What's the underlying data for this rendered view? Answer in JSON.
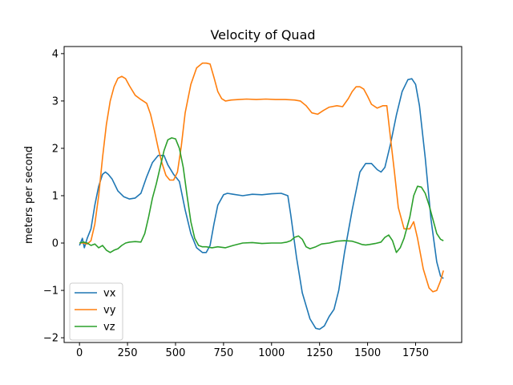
{
  "chart_data": {
    "type": "line",
    "title": "Velocity of Quad",
    "xlabel": "",
    "ylabel": "meters per second",
    "xlim": [
      -80,
      1990
    ],
    "ylim": [
      -2.1,
      4.15
    ],
    "xticks": [
      0,
      250,
      500,
      750,
      1000,
      1250,
      1500,
      1750
    ],
    "yticks": [
      -2,
      -1,
      0,
      1,
      2,
      3,
      4
    ],
    "grid": false,
    "legend": "lower-left",
    "series": [
      {
        "name": "vx",
        "color": "#1f77b4",
        "x": [
          0,
          15,
          25,
          40,
          60,
          80,
          100,
          120,
          135,
          150,
          170,
          200,
          230,
          260,
          290,
          320,
          350,
          380,
          410,
          440,
          460,
          490,
          520,
          550,
          580,
          610,
          640,
          660,
          680,
          700,
          720,
          750,
          770,
          800,
          850,
          900,
          950,
          1000,
          1050,
          1085,
          1100,
          1130,
          1160,
          1200,
          1230,
          1250,
          1275,
          1300,
          1325,
          1350,
          1380,
          1420,
          1460,
          1490,
          1520,
          1550,
          1570,
          1590,
          1620,
          1650,
          1680,
          1710,
          1730,
          1750,
          1770,
          1800,
          1830,
          1860,
          1880,
          1895
        ],
        "values": [
          -0.05,
          0.1,
          -0.1,
          0.1,
          0.3,
          0.8,
          1.2,
          1.45,
          1.5,
          1.45,
          1.35,
          1.1,
          0.98,
          0.93,
          0.95,
          1.05,
          1.4,
          1.7,
          1.85,
          1.85,
          1.65,
          1.45,
          1.3,
          0.7,
          0.2,
          -0.1,
          -0.2,
          -0.2,
          -0.05,
          0.4,
          0.8,
          1.02,
          1.05,
          1.03,
          1.0,
          1.03,
          1.02,
          1.04,
          1.05,
          1.0,
          0.6,
          -0.3,
          -1.05,
          -1.6,
          -1.8,
          -1.82,
          -1.75,
          -1.55,
          -1.4,
          -1.0,
          -0.2,
          0.7,
          1.5,
          1.68,
          1.68,
          1.55,
          1.5,
          1.6,
          2.1,
          2.7,
          3.2,
          3.45,
          3.47,
          3.35,
          2.9,
          1.8,
          0.5,
          -0.4,
          -0.7,
          -0.75
        ]
      },
      {
        "name": "vy",
        "color": "#ff7f0e",
        "x": [
          0,
          20,
          40,
          60,
          80,
          100,
          120,
          140,
          160,
          180,
          200,
          220,
          240,
          260,
          290,
          320,
          350,
          370,
          390,
          410,
          430,
          450,
          470,
          490,
          510,
          530,
          550,
          580,
          610,
          640,
          660,
          680,
          700,
          720,
          740,
          760,
          790,
          830,
          870,
          920,
          970,
          1020,
          1070,
          1120,
          1150,
          1180,
          1210,
          1240,
          1270,
          1300,
          1340,
          1370,
          1400,
          1420,
          1440,
          1460,
          1480,
          1500,
          1520,
          1550,
          1580,
          1600,
          1620,
          1640,
          1660,
          1690,
          1720,
          1740,
          1760,
          1790,
          1820,
          1840,
          1860,
          1880,
          1895
        ],
        "values": [
          0.0,
          0.0,
          -0.02,
          0.05,
          0.4,
          1.0,
          1.8,
          2.5,
          3.0,
          3.3,
          3.48,
          3.52,
          3.47,
          3.32,
          3.12,
          3.03,
          2.95,
          2.72,
          2.38,
          2.0,
          1.68,
          1.43,
          1.33,
          1.33,
          1.5,
          2.05,
          2.75,
          3.35,
          3.7,
          3.8,
          3.8,
          3.78,
          3.5,
          3.2,
          3.05,
          3.0,
          3.02,
          3.03,
          3.04,
          3.03,
          3.04,
          3.03,
          3.03,
          3.02,
          3.0,
          2.9,
          2.75,
          2.72,
          2.8,
          2.87,
          2.9,
          2.88,
          3.05,
          3.2,
          3.3,
          3.3,
          3.25,
          3.1,
          2.93,
          2.85,
          2.9,
          2.9,
          2.2,
          1.5,
          0.75,
          0.3,
          0.3,
          0.45,
          0.1,
          -0.55,
          -0.95,
          -1.03,
          -1.0,
          -0.8,
          -0.58
        ]
      },
      {
        "name": "vz",
        "color": "#2ca02c",
        "x": [
          0,
          20,
          40,
          60,
          80,
          100,
          120,
          140,
          160,
          180,
          200,
          220,
          240,
          260,
          290,
          320,
          340,
          360,
          380,
          400,
          420,
          440,
          460,
          480,
          500,
          520,
          540,
          560,
          580,
          600,
          620,
          640,
          660,
          690,
          720,
          760,
          800,
          850,
          900,
          950,
          1000,
          1050,
          1080,
          1100,
          1120,
          1140,
          1160,
          1180,
          1200,
          1230,
          1260,
          1300,
          1340,
          1380,
          1420,
          1450,
          1470,
          1490,
          1510,
          1540,
          1570,
          1590,
          1610,
          1630,
          1650,
          1670,
          1690,
          1720,
          1740,
          1760,
          1780,
          1800,
          1820,
          1840,
          1860,
          1880,
          1895
        ],
        "values": [
          0.0,
          0.02,
          0.0,
          -0.05,
          -0.02,
          -0.1,
          -0.05,
          -0.15,
          -0.2,
          -0.15,
          -0.12,
          -0.05,
          0.0,
          0.02,
          0.03,
          0.02,
          0.2,
          0.55,
          0.95,
          1.25,
          1.6,
          1.95,
          2.18,
          2.22,
          2.2,
          2.0,
          1.6,
          1.0,
          0.45,
          0.1,
          -0.05,
          -0.08,
          -0.08,
          -0.1,
          -0.08,
          -0.1,
          -0.05,
          0.0,
          0.01,
          -0.01,
          0.0,
          0.0,
          0.02,
          0.05,
          0.12,
          0.15,
          0.08,
          -0.08,
          -0.12,
          -0.08,
          -0.02,
          0.0,
          0.04,
          0.05,
          0.04,
          0.0,
          -0.03,
          -0.04,
          -0.03,
          -0.01,
          0.02,
          0.12,
          0.17,
          0.05,
          -0.2,
          -0.1,
          0.1,
          0.55,
          1.0,
          1.2,
          1.18,
          1.05,
          0.8,
          0.5,
          0.2,
          0.08,
          0.05
        ]
      }
    ]
  }
}
